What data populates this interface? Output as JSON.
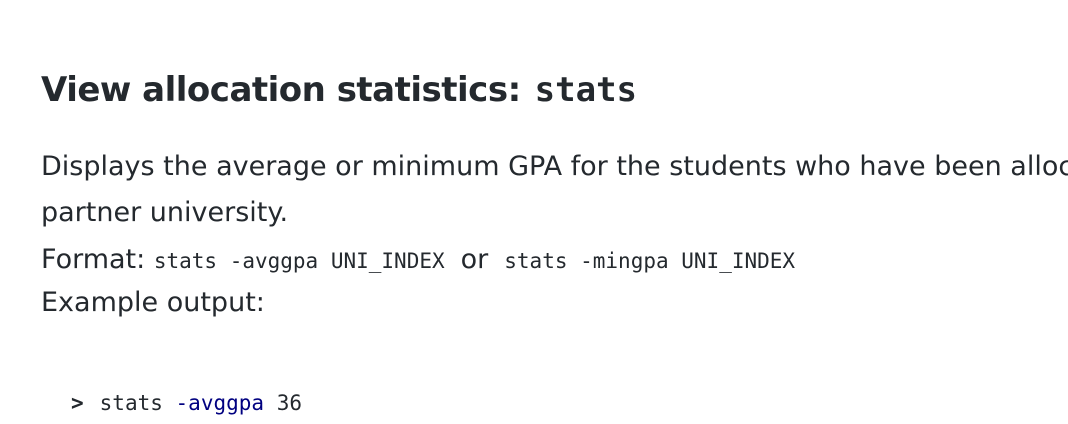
{
  "heading": {
    "title": "View allocation statistics:",
    "command": "stats"
  },
  "description": {
    "line1": "Displays the average or minimum GPA for the students who have been allocat",
    "line2": "partner university."
  },
  "format": {
    "label": "Format:",
    "option1": "stats -avggpa UNI_INDEX",
    "separator": "or",
    "option2": "stats -mingpa UNI_INDEX"
  },
  "example": {
    "label": "Example output:",
    "prompt": ">",
    "command": "stats",
    "flag": "-avggpa",
    "argument": "36"
  }
}
